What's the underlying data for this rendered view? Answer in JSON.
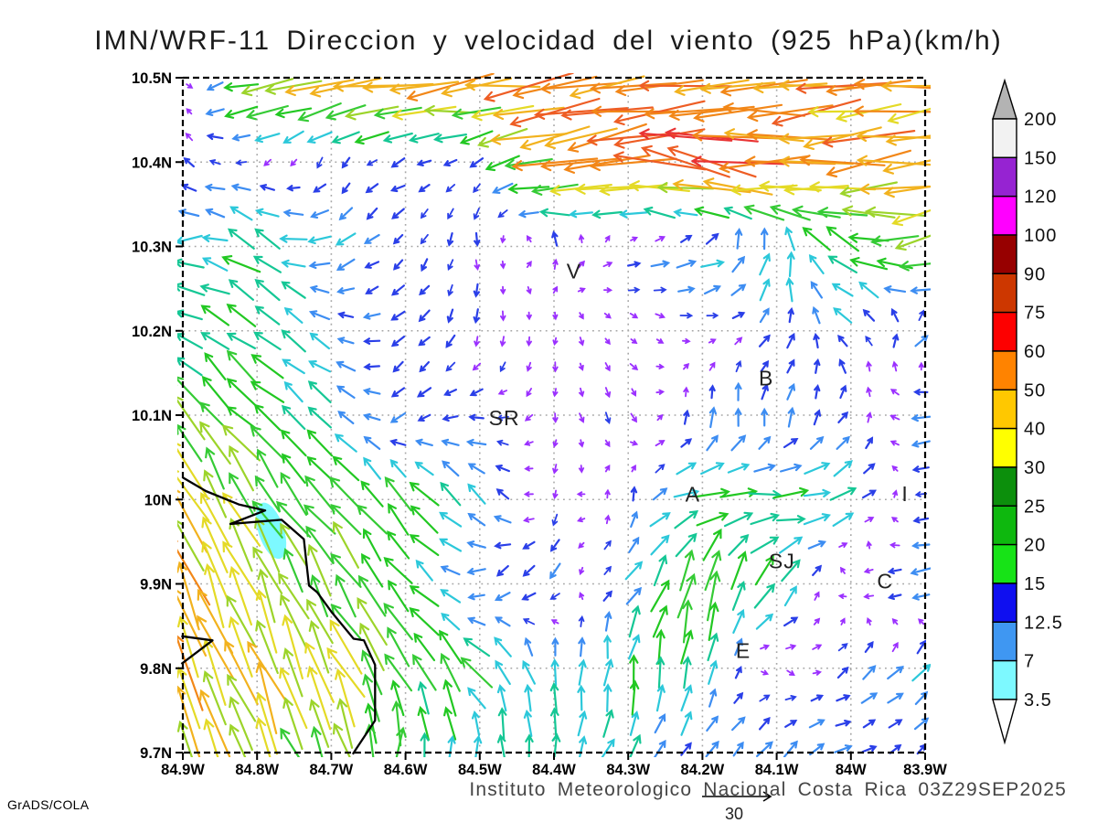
{
  "title": "IMN/WRF-11 Direccion y velocidad del viento (925 hPa)(km/h)",
  "footer": {
    "institute_line": "Instituto Meteorologico Nacional Costa Rica 03Z29SEP2025",
    "stamp": "GrADS/COLA"
  },
  "reference_vector": {
    "label": "30",
    "value_kmh": 30
  },
  "axes": {
    "x_ticks": [
      {
        "label": "84.9W",
        "lon": 84.9
      },
      {
        "label": "84.8W",
        "lon": 84.8
      },
      {
        "label": "84.7W",
        "lon": 84.7
      },
      {
        "label": "84.6W",
        "lon": 84.6
      },
      {
        "label": "84.5W",
        "lon": 84.5
      },
      {
        "label": "84.4W",
        "lon": 84.4
      },
      {
        "label": "84.3W",
        "lon": 84.3
      },
      {
        "label": "84.2W",
        "lon": 84.2
      },
      {
        "label": "84.1W",
        "lon": 84.1
      },
      {
        "label": "84W",
        "lon": 84.0
      },
      {
        "label": "83.9W",
        "lon": 83.9
      }
    ],
    "y_ticks": [
      {
        "label": "10.5N",
        "lat": 10.5
      },
      {
        "label": "10.4N",
        "lat": 10.4
      },
      {
        "label": "10.3N",
        "lat": 10.3
      },
      {
        "label": "10.2N",
        "lat": 10.2
      },
      {
        "label": "10.1N",
        "lat": 10.1
      },
      {
        "label": "10N",
        "lat": 10.0
      },
      {
        "label": "9.9N",
        "lat": 9.9
      },
      {
        "label": "9.8N",
        "lat": 9.8
      },
      {
        "label": "9.7N",
        "lat": 9.7
      }
    ],
    "grid_style": "dotted"
  },
  "colorbar": {
    "levels": [
      "200",
      "150",
      "120",
      "100",
      "90",
      "75",
      "60",
      "50",
      "40",
      "30",
      "25",
      "20",
      "15",
      "12.5",
      "7",
      "3.5"
    ],
    "segment_colors": [
      "#f2f2f2",
      "#9623d2",
      "#ff00ff",
      "#970000",
      "#cd3700",
      "#fd0000",
      "#ff8300",
      "#ffc800",
      "#ffff00",
      "#0c8f0c",
      "#0eb80e",
      "#17e317",
      "#0f0ff0",
      "#3f97f2",
      "#7df9ff"
    ],
    "top_cap_color": "#b3b3b3",
    "bottom_cap_color": "#ffffff"
  },
  "stations": [
    {
      "label": "V",
      "lon_w": 84.373,
      "lat_n": 10.271
    },
    {
      "label": "B",
      "lon_w": 84.114,
      "lat_n": 10.144
    },
    {
      "label": "SR",
      "lon_w": 84.467,
      "lat_n": 10.097
    },
    {
      "label": "A",
      "lon_w": 84.213,
      "lat_n": 10.006
    },
    {
      "label": "SJ",
      "lon_w": 84.093,
      "lat_n": 9.927
    },
    {
      "label": "C",
      "lon_w": 83.954,
      "lat_n": 9.903
    },
    {
      "label": "E",
      "lon_w": 84.145,
      "lat_n": 9.821
    },
    {
      "label": "I",
      "lon_w": 83.927,
      "lat_n": 10.007
    }
  ],
  "map": {
    "coastline_lonlat": [
      [
        84.9,
        10.026
      ],
      [
        84.869,
        10.01
      ],
      [
        84.824,
        9.994
      ],
      [
        84.789,
        9.987
      ],
      [
        84.836,
        9.971
      ],
      [
        84.767,
        9.976
      ],
      [
        84.737,
        9.953
      ],
      [
        84.734,
        9.929
      ],
      [
        84.73,
        9.898
      ],
      [
        84.719,
        9.89
      ],
      [
        84.699,
        9.866
      ],
      [
        84.67,
        9.835
      ],
      [
        84.656,
        9.833
      ],
      [
        84.641,
        9.804
      ],
      [
        84.641,
        9.738
      ],
      [
        84.666,
        9.705
      ],
      [
        84.671,
        9.698
      ]
    ],
    "cape_lonlat": [
      [
        84.902,
        9.838
      ],
      [
        84.86,
        9.833
      ],
      [
        84.902,
        9.805
      ]
    ],
    "water_patch": {
      "lon_w": 84.781,
      "lat_n": 9.963,
      "color": "#7df9ff"
    }
  },
  "chart_data": {
    "type": "quiver",
    "units": "km/h",
    "level": "925 hPa",
    "xlim_lon_w": [
      84.9,
      83.9
    ],
    "ylim_lat_n": [
      9.7,
      10.5
    ],
    "dir_convention": "degrees CCW from East = direction the arrow points",
    "lons_w": [
      84.9,
      84.8,
      84.7,
      84.6,
      84.5,
      84.4,
      84.3,
      84.2,
      84.1,
      84.0,
      83.9
    ],
    "lats_n": [
      10.5,
      10.4,
      10.3,
      10.2,
      10.1,
      10.0,
      9.9,
      9.8,
      9.7
    ],
    "vectors_dir_speed": [
      [
        [
          0,
          4
        ],
        [
          195,
          30
        ],
        [
          190,
          36
        ],
        [
          186,
          42
        ],
        [
          185,
          46
        ],
        [
          185,
          48
        ],
        [
          185,
          48
        ],
        [
          185,
          46
        ],
        [
          185,
          44
        ],
        [
          188,
          42
        ],
        [
          188,
          40
        ]
      ],
      [
        [
          140,
          7
        ],
        [
          210,
          5
        ],
        [
          240,
          5
        ],
        [
          205,
          8
        ],
        [
          210,
          7
        ],
        [
          195,
          40
        ],
        [
          188,
          48
        ],
        [
          168,
          56
        ],
        [
          185,
          48
        ],
        [
          185,
          44
        ],
        [
          186,
          40
        ]
      ],
      [
        [
          190,
          14
        ],
        [
          145,
          20
        ],
        [
          215,
          12
        ],
        [
          225,
          6
        ],
        [
          275,
          6
        ],
        [
          75,
          8
        ],
        [
          10,
          7
        ],
        [
          10,
          13
        ],
        [
          85,
          16
        ],
        [
          150,
          22
        ],
        [
          195,
          28
        ]
      ],
      [
        [
          150,
          16
        ],
        [
          140,
          18
        ],
        [
          150,
          10
        ],
        [
          220,
          8
        ],
        [
          265,
          6
        ],
        [
          260,
          4
        ],
        [
          320,
          4
        ],
        [
          350,
          4
        ],
        [
          50,
          8
        ],
        [
          140,
          9
        ],
        [
          40,
          11
        ]
      ],
      [
        [
          130,
          24
        ],
        [
          135,
          20
        ],
        [
          140,
          14
        ],
        [
          230,
          8
        ],
        [
          185,
          8
        ],
        [
          270,
          4
        ],
        [
          300,
          6
        ],
        [
          95,
          10
        ],
        [
          85,
          9
        ],
        [
          55,
          8
        ],
        [
          190,
          12
        ]
      ],
      [
        [
          115,
          34
        ],
        [
          120,
          26
        ],
        [
          130,
          22
        ],
        [
          130,
          20
        ],
        [
          135,
          14
        ],
        [
          250,
          4
        ],
        [
          90,
          7
        ],
        [
          5,
          18
        ],
        [
          0,
          20
        ],
        [
          30,
          14
        ],
        [
          190,
          7
        ]
      ],
      [
        [
          112,
          40
        ],
        [
          115,
          34
        ],
        [
          122,
          26
        ],
        [
          130,
          20
        ],
        [
          220,
          9
        ],
        [
          230,
          9
        ],
        [
          45,
          12
        ],
        [
          80,
          26
        ],
        [
          50,
          16
        ],
        [
          200,
          5
        ],
        [
          190,
          12
        ]
      ],
      [
        [
          110,
          38
        ],
        [
          112,
          34
        ],
        [
          118,
          30
        ],
        [
          125,
          24
        ],
        [
          130,
          20
        ],
        [
          90,
          12
        ],
        [
          85,
          18
        ],
        [
          80,
          14
        ],
        [
          300,
          5
        ],
        [
          45,
          8
        ],
        [
          40,
          12
        ]
      ],
      [
        [
          112,
          34
        ],
        [
          112,
          32
        ],
        [
          115,
          28
        ],
        [
          80,
          20
        ],
        [
          90,
          12
        ],
        [
          85,
          16
        ],
        [
          55,
          14
        ],
        [
          50,
          8
        ],
        [
          45,
          12
        ],
        [
          10,
          8
        ],
        [
          50,
          5
        ]
      ]
    ],
    "arrow_speed_palette": [
      {
        "max_kmh": 5,
        "color": "#9b30ff"
      },
      {
        "max_kmh": 8,
        "color": "#2a3fe8"
      },
      {
        "max_kmh": 11,
        "color": "#3d8df2"
      },
      {
        "max_kmh": 14,
        "color": "#2cc8da"
      },
      {
        "max_kmh": 17,
        "color": "#15c795"
      },
      {
        "max_kmh": 21,
        "color": "#22c822"
      },
      {
        "max_kmh": 26,
        "color": "#35cb35"
      },
      {
        "max_kmh": 31,
        "color": "#9cd42a"
      },
      {
        "max_kmh": 36,
        "color": "#e4da26"
      },
      {
        "max_kmh": 42,
        "color": "#f2b21e"
      },
      {
        "max_kmh": 48,
        "color": "#f28718"
      },
      {
        "max_kmh": 55,
        "color": "#ee5d24"
      },
      {
        "max_kmh": 62,
        "color": "#e93333"
      },
      {
        "max_kmh": 999,
        "color": "#e8336e"
      }
    ],
    "legend_position": "right",
    "grid_on": true
  }
}
